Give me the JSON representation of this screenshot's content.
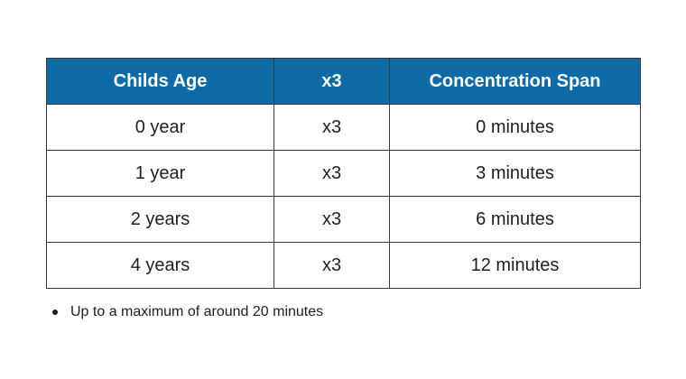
{
  "table": {
    "header_color": "#0f6aa6",
    "headers": [
      "Childs Age",
      "x3",
      "Concentration Span"
    ],
    "rows": [
      [
        "0 year",
        "x3",
        "0 minutes"
      ],
      [
        "1 year",
        "x3",
        "3 minutes"
      ],
      [
        "2 years",
        "x3",
        "6 minutes"
      ],
      [
        "4 years",
        "x3",
        "12 minutes"
      ]
    ]
  },
  "notes": [
    "Up to a maximum of around 20 minutes"
  ]
}
